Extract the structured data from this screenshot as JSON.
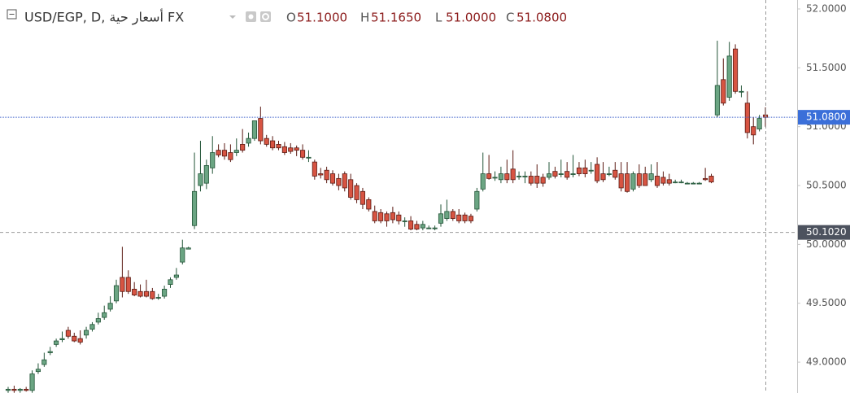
{
  "chart_data": {
    "type": "candlestick",
    "symbol_title": "USD/EGP, D, أسعار حية FX",
    "ohlc_legend": [
      {
        "label": "O",
        "value": "51.1000"
      },
      {
        "label": "H",
        "value": "51.1650"
      },
      {
        "label": "L",
        "value": "51.0000"
      },
      {
        "label": "C",
        "value": "51.0800"
      }
    ],
    "up_color": "#6ba583",
    "up_border": "#225437",
    "down_color": "#d75442",
    "down_border": "#5b1a13",
    "ylim": [
      48.738,
      52.076
    ],
    "yticks": [
      {
        "value": 49,
        "label": "49.0000"
      },
      {
        "value": 49.5,
        "label": "49.5000"
      },
      {
        "value": 50,
        "label": "50.0000"
      },
      {
        "value": 50.5,
        "label": "50.5000"
      },
      {
        "value": 51,
        "label": "51.0000"
      },
      {
        "value": 51.5,
        "label": "51.5000"
      },
      {
        "value": 52,
        "label": "52.0000"
      }
    ],
    "last_price": {
      "value": 51.08,
      "label": "51.0800"
    },
    "crosshair_price": {
      "value": 50.102,
      "label": "50.1020"
    },
    "ohlc": [
      [
        48.76,
        48.79,
        48.74,
        48.77
      ],
      [
        48.77,
        48.8,
        48.74,
        48.76
      ],
      [
        48.76,
        48.78,
        48.74,
        48.77
      ],
      [
        48.77,
        48.79,
        48.75,
        48.76
      ],
      [
        48.76,
        48.93,
        48.74,
        48.9
      ],
      [
        48.92,
        48.99,
        48.9,
        48.94
      ],
      [
        48.98,
        49.08,
        48.96,
        49.02
      ],
      [
        49.08,
        49.13,
        49.06,
        49.09
      ],
      [
        49.15,
        49.2,
        49.13,
        49.18
      ],
      [
        49.19,
        49.26,
        49.17,
        49.2
      ],
      [
        49.27,
        49.3,
        49.2,
        49.22
      ],
      [
        49.22,
        49.25,
        49.17,
        49.18
      ],
      [
        49.2,
        49.27,
        49.15,
        49.17
      ],
      [
        49.23,
        49.3,
        49.2,
        49.27
      ],
      [
        49.28,
        49.34,
        49.26,
        49.32
      ],
      [
        49.34,
        49.42,
        49.32,
        49.37
      ],
      [
        49.38,
        49.48,
        49.36,
        49.42
      ],
      [
        49.45,
        49.56,
        49.43,
        49.5
      ],
      [
        49.52,
        49.7,
        49.5,
        49.65
      ],
      [
        49.72,
        49.98,
        49.55,
        49.6
      ],
      [
        49.72,
        49.78,
        49.58,
        49.6
      ],
      [
        49.62,
        49.68,
        49.56,
        49.57
      ],
      [
        49.6,
        49.66,
        49.55,
        49.56
      ],
      [
        49.6,
        49.7,
        49.55,
        49.56
      ],
      [
        49.6,
        49.63,
        49.53,
        49.54
      ],
      [
        49.55,
        49.58,
        49.53,
        49.55
      ],
      [
        49.56,
        49.65,
        49.54,
        49.62
      ],
      [
        49.66,
        49.72,
        49.63,
        49.7
      ],
      [
        49.72,
        49.8,
        49.7,
        49.74
      ],
      [
        49.85,
        50.04,
        49.83,
        49.97
      ],
      [
        49.96,
        49.98,
        49.96,
        49.97
      ],
      [
        50.16,
        50.78,
        50.13,
        50.45
      ],
      [
        50.5,
        50.88,
        50.45,
        50.6
      ],
      [
        50.52,
        50.72,
        50.47,
        50.67
      ],
      [
        50.65,
        50.92,
        50.6,
        50.78
      ],
      [
        50.8,
        50.85,
        50.74,
        50.76
      ],
      [
        50.8,
        50.86,
        50.72,
        50.75
      ],
      [
        50.78,
        50.85,
        50.7,
        50.72
      ],
      [
        50.78,
        50.9,
        50.75,
        50.8
      ],
      [
        50.85,
        50.98,
        50.78,
        50.8
      ],
      [
        50.86,
        50.95,
        50.83,
        50.9
      ],
      [
        50.9,
        51.05,
        50.88,
        51.05
      ],
      [
        51.07,
        51.17,
        50.85,
        50.88
      ],
      [
        50.9,
        50.93,
        50.83,
        50.85
      ],
      [
        50.88,
        50.92,
        50.8,
        50.82
      ],
      [
        50.85,
        50.88,
        50.8,
        50.82
      ],
      [
        50.83,
        50.87,
        50.76,
        50.78
      ],
      [
        50.82,
        50.86,
        50.77,
        50.79
      ],
      [
        50.82,
        50.84,
        50.75,
        50.8
      ],
      [
        50.8,
        50.85,
        50.72,
        50.74
      ],
      [
        50.74,
        50.8,
        50.7,
        50.74
      ],
      [
        50.7,
        50.72,
        50.55,
        50.58
      ],
      [
        50.6,
        50.65,
        50.56,
        50.59
      ],
      [
        50.63,
        50.66,
        50.52,
        50.55
      ],
      [
        50.6,
        50.63,
        50.5,
        50.52
      ],
      [
        50.56,
        50.6,
        50.46,
        50.5
      ],
      [
        50.6,
        50.62,
        50.45,
        50.48
      ],
      [
        50.55,
        50.6,
        50.38,
        50.4
      ],
      [
        50.5,
        50.52,
        50.35,
        50.38
      ],
      [
        50.45,
        50.48,
        50.3,
        50.34
      ],
      [
        50.38,
        50.4,
        50.28,
        50.3
      ],
      [
        50.28,
        50.33,
        50.18,
        50.2
      ],
      [
        50.27,
        50.3,
        50.18,
        50.2
      ],
      [
        50.26,
        50.28,
        50.15,
        50.2
      ],
      [
        50.27,
        50.32,
        50.18,
        50.21
      ],
      [
        50.25,
        50.28,
        50.17,
        50.2
      ],
      [
        50.2,
        50.23,
        50.15,
        50.2
      ],
      [
        50.2,
        50.24,
        50.12,
        50.13
      ],
      [
        50.17,
        50.2,
        50.12,
        50.13
      ],
      [
        50.14,
        50.2,
        50.12,
        50.17
      ],
      [
        50.14,
        50.16,
        50.13,
        50.14
      ],
      [
        50.14,
        50.16,
        50.12,
        50.14
      ],
      [
        50.18,
        50.34,
        50.15,
        50.26
      ],
      [
        50.22,
        50.38,
        50.2,
        50.28
      ],
      [
        50.28,
        50.3,
        50.2,
        50.22
      ],
      [
        50.25,
        50.3,
        50.18,
        50.2
      ],
      [
        50.25,
        50.27,
        50.18,
        50.2
      ],
      [
        50.24,
        50.26,
        50.18,
        50.2
      ],
      [
        50.3,
        50.48,
        50.28,
        50.45
      ],
      [
        50.47,
        50.78,
        50.45,
        50.6
      ],
      [
        50.6,
        50.76,
        50.55,
        50.56
      ],
      [
        50.57,
        50.62,
        50.54,
        50.57
      ],
      [
        50.55,
        50.66,
        50.52,
        50.6
      ],
      [
        50.6,
        50.72,
        50.52,
        50.55
      ],
      [
        50.64,
        50.8,
        50.52,
        50.55
      ],
      [
        50.58,
        50.62,
        50.55,
        50.58
      ],
      [
        50.58,
        50.62,
        50.52,
        50.58
      ],
      [
        50.58,
        50.62,
        50.5,
        50.52
      ],
      [
        50.58,
        50.68,
        50.48,
        50.52
      ],
      [
        50.57,
        50.6,
        50.49,
        50.52
      ],
      [
        50.57,
        50.7,
        50.55,
        50.6
      ],
      [
        50.62,
        50.66,
        50.56,
        50.58
      ],
      [
        50.6,
        50.72,
        50.57,
        50.6
      ],
      [
        50.62,
        50.7,
        50.55,
        50.57
      ],
      [
        50.6,
        50.76,
        50.57,
        50.6
      ],
      [
        50.65,
        50.7,
        50.58,
        50.6
      ],
      [
        50.65,
        50.72,
        50.57,
        50.6
      ],
      [
        50.63,
        50.7,
        50.6,
        50.63
      ],
      [
        50.68,
        50.74,
        50.52,
        50.54
      ],
      [
        50.6,
        50.7,
        50.53,
        50.55
      ],
      [
        50.6,
        50.66,
        50.58,
        50.6
      ],
      [
        50.63,
        50.7,
        50.55,
        50.57
      ],
      [
        50.6,
        50.7,
        50.45,
        50.48
      ],
      [
        50.6,
        50.7,
        50.44,
        50.45
      ],
      [
        50.47,
        50.62,
        50.45,
        50.6
      ],
      [
        50.6,
        50.68,
        50.48,
        50.5
      ],
      [
        50.6,
        50.66,
        50.5,
        50.5
      ],
      [
        50.55,
        50.68,
        50.53,
        50.6
      ],
      [
        50.58,
        50.7,
        50.48,
        50.5
      ],
      [
        50.57,
        50.62,
        50.5,
        50.52
      ],
      [
        50.55,
        50.6,
        50.5,
        50.52
      ],
      [
        50.53,
        50.55,
        50.52,
        50.53
      ],
      [
        50.53,
        50.55,
        50.52,
        50.53
      ],
      [
        50.52,
        50.53,
        50.52,
        50.52
      ],
      [
        50.52,
        50.53,
        50.52,
        50.52
      ],
      [
        50.52,
        50.53,
        50.52,
        50.52
      ],
      [
        50.56,
        50.65,
        50.54,
        50.55
      ],
      [
        50.58,
        50.6,
        50.52,
        50.53
      ],
      [
        51.1,
        51.73,
        51.08,
        51.35
      ],
      [
        51.4,
        51.58,
        51.18,
        51.2
      ],
      [
        51.25,
        51.72,
        51.22,
        51.6
      ],
      [
        51.66,
        51.7,
        51.28,
        51.3
      ],
      [
        51.3,
        51.35,
        51.25,
        51.3
      ],
      [
        51.2,
        51.3,
        50.9,
        50.95
      ],
      [
        51.0,
        51.08,
        50.85,
        50.93
      ],
      [
        50.98,
        51.1,
        50.96,
        51.07
      ],
      [
        51.1,
        51.165,
        51.0,
        51.08
      ]
    ]
  }
}
